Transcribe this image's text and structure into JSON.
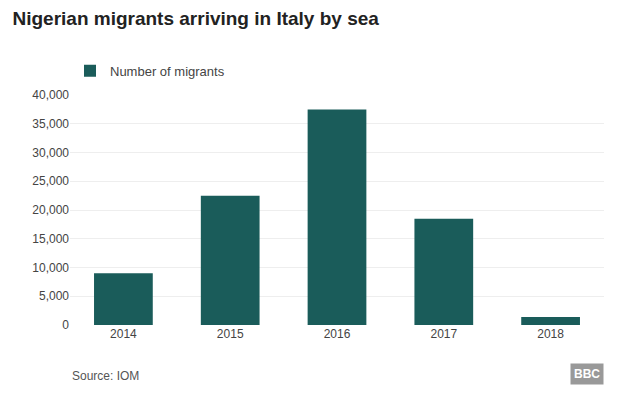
{
  "chart_data": {
    "type": "bar",
    "title": "Nigerian migrants arriving in Italy by sea",
    "categories": [
      "2014",
      "2015",
      "2016",
      "2017",
      "2018"
    ],
    "series": [
      {
        "name": "Number of migrants",
        "color": "#1a5c5a",
        "values": [
          9000,
          22500,
          37500,
          18500,
          1400
        ]
      }
    ],
    "ylim": [
      0,
      40000
    ],
    "yticks": [
      0,
      {
        "value": 5000,
        "label": "5,000"
      },
      {
        "value": 10000,
        "label": "10,000"
      },
      {
        "value": 15000,
        "label": "15,000"
      },
      {
        "value": 20000,
        "label": "20,000"
      },
      {
        "value": 25000,
        "label": "25,000"
      },
      {
        "value": 30000,
        "label": "30,000"
      },
      {
        "value": 35000,
        "label": "35,000"
      },
      {
        "value": 40000,
        "label": "40,000"
      }
    ],
    "grid": true,
    "legend": "top left",
    "annotations": [
      "Source: IOM",
      "BBC"
    ]
  }
}
